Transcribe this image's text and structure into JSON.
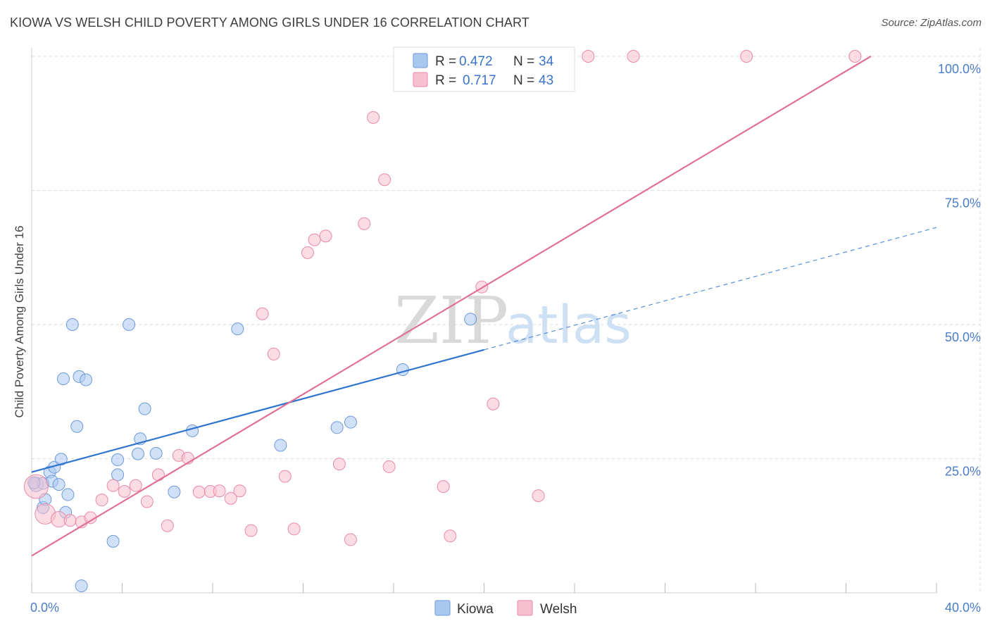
{
  "title": "KIOWA VS WELSH CHILD POVERTY AMONG GIRLS UNDER 16 CORRELATION CHART",
  "source": "Source: ZipAtlas.com",
  "watermark": {
    "zip": "ZIP",
    "atlas": "atlas"
  },
  "colors": {
    "kiowa_fill": "#a9c8f0",
    "kiowa_stroke": "#6e9ad8",
    "kiowa_line": "#2f74cf",
    "welsh_fill": "#f7bfd0",
    "welsh_stroke": "#e98aa8",
    "welsh_line": "#e07098",
    "grid": "#dcdcdc",
    "tick_label": "#4a7cc7"
  },
  "legend": {
    "rows": [
      {
        "r_label": "R =",
        "r_value": "0.472",
        "n_label": "N =",
        "n_value": "34"
      },
      {
        "r_label": "R =",
        "r_value": "0.717",
        "n_label": "N =",
        "n_value": "43"
      }
    ]
  },
  "chart_data": {
    "type": "scatter",
    "title": "KIOWA VS WELSH CHILD POVERTY AMONG GIRLS UNDER 16 CORRELATION CHART",
    "xlabel": "",
    "ylabel": "Child Poverty Among Girls Under 16",
    "xlim": [
      0,
      40
    ],
    "ylim": [
      0,
      102
    ],
    "x_tick_labels": [
      "0.0%",
      "40.0%"
    ],
    "y_ticks": [
      25,
      50,
      75,
      100
    ],
    "y_tick_labels": [
      "25.0%",
      "50.0%",
      "75.0%",
      "100.0%"
    ],
    "grid": true,
    "legend_position": "top-center",
    "series": [
      {
        "name": "Kiowa",
        "r": 0.472,
        "n": 34,
        "trend": {
          "x0": 0,
          "y0": 22.5,
          "x1": 20,
          "y1": 45.3,
          "dash_x1": 40,
          "dash_y1": 68.1
        },
        "points": [
          {
            "x": 0.2,
            "y": 20.2,
            "s": 1.2
          },
          {
            "x": 0.5,
            "y": 20.4,
            "s": 1
          },
          {
            "x": 0.5,
            "y": 15.9,
            "s": 1
          },
          {
            "x": 0.6,
            "y": 17.4,
            "s": 1
          },
          {
            "x": 0.8,
            "y": 22.5,
            "s": 1
          },
          {
            "x": 0.9,
            "y": 20.8,
            "s": 1
          },
          {
            "x": 1.0,
            "y": 23.4,
            "s": 1
          },
          {
            "x": 1.2,
            "y": 20.2,
            "s": 1
          },
          {
            "x": 1.3,
            "y": 24.9,
            "s": 1
          },
          {
            "x": 1.4,
            "y": 39.9,
            "s": 1
          },
          {
            "x": 1.5,
            "y": 15.0,
            "s": 1
          },
          {
            "x": 1.6,
            "y": 18.3,
            "s": 1
          },
          {
            "x": 1.8,
            "y": 50.0,
            "s": 1
          },
          {
            "x": 2.0,
            "y": 31.0,
            "s": 1
          },
          {
            "x": 2.1,
            "y": 40.3,
            "s": 1
          },
          {
            "x": 2.2,
            "y": 1.3,
            "s": 1
          },
          {
            "x": 2.4,
            "y": 39.7,
            "s": 1
          },
          {
            "x": 3.6,
            "y": 9.6,
            "s": 1
          },
          {
            "x": 3.8,
            "y": 22.0,
            "s": 1
          },
          {
            "x": 3.8,
            "y": 24.8,
            "s": 1
          },
          {
            "x": 4.3,
            "y": 50.0,
            "s": 1
          },
          {
            "x": 4.7,
            "y": 25.9,
            "s": 1
          },
          {
            "x": 4.8,
            "y": 28.7,
            "s": 1
          },
          {
            "x": 5.0,
            "y": 34.3,
            "s": 1
          },
          {
            "x": 5.5,
            "y": 26.0,
            "s": 1
          },
          {
            "x": 6.3,
            "y": 18.8,
            "s": 1
          },
          {
            "x": 7.1,
            "y": 30.2,
            "s": 1
          },
          {
            "x": 9.1,
            "y": 49.2,
            "s": 1
          },
          {
            "x": 11.0,
            "y": 27.5,
            "s": 1
          },
          {
            "x": 13.5,
            "y": 30.8,
            "s": 1
          },
          {
            "x": 14.1,
            "y": 31.8,
            "s": 1
          },
          {
            "x": 16.4,
            "y": 41.6,
            "s": 1
          },
          {
            "x": 19.4,
            "y": 51.0,
            "s": 1
          },
          {
            "x": 0.1,
            "y": 20.5,
            "s": 1
          }
        ]
      },
      {
        "name": "Welsh",
        "r": 0.717,
        "n": 43,
        "trend": {
          "x0": 0,
          "y0": 6.9,
          "x1": 37.1,
          "y1": 100
        },
        "points": [
          {
            "x": 0.2,
            "y": 19.8,
            "s": 2.0
          },
          {
            "x": 0.6,
            "y": 14.7,
            "s": 1.7
          },
          {
            "x": 1.2,
            "y": 13.7,
            "s": 1.3
          },
          {
            "x": 1.7,
            "y": 13.5,
            "s": 1
          },
          {
            "x": 2.2,
            "y": 13.2,
            "s": 1
          },
          {
            "x": 2.6,
            "y": 14.0,
            "s": 1
          },
          {
            "x": 3.1,
            "y": 17.3,
            "s": 1
          },
          {
            "x": 3.6,
            "y": 20.0,
            "s": 1
          },
          {
            "x": 4.1,
            "y": 18.9,
            "s": 1
          },
          {
            "x": 4.6,
            "y": 20.0,
            "s": 1
          },
          {
            "x": 5.1,
            "y": 17.0,
            "s": 1
          },
          {
            "x": 5.6,
            "y": 22.0,
            "s": 1
          },
          {
            "x": 6.0,
            "y": 12.5,
            "s": 1
          },
          {
            "x": 6.5,
            "y": 25.6,
            "s": 1
          },
          {
            "x": 6.9,
            "y": 25.1,
            "s": 1
          },
          {
            "x": 7.4,
            "y": 18.8,
            "s": 1
          },
          {
            "x": 7.9,
            "y": 18.9,
            "s": 1
          },
          {
            "x": 8.3,
            "y": 19.0,
            "s": 1
          },
          {
            "x": 8.8,
            "y": 17.6,
            "s": 1
          },
          {
            "x": 9.2,
            "y": 19.0,
            "s": 1
          },
          {
            "x": 9.7,
            "y": 11.6,
            "s": 1
          },
          {
            "x": 10.2,
            "y": 52.0,
            "s": 1
          },
          {
            "x": 10.7,
            "y": 44.5,
            "s": 1
          },
          {
            "x": 11.2,
            "y": 21.7,
            "s": 1
          },
          {
            "x": 11.6,
            "y": 11.9,
            "s": 1
          },
          {
            "x": 12.2,
            "y": 63.4,
            "s": 1
          },
          {
            "x": 12.5,
            "y": 65.8,
            "s": 1
          },
          {
            "x": 13.0,
            "y": 66.5,
            "s": 1
          },
          {
            "x": 13.6,
            "y": 24.0,
            "s": 1
          },
          {
            "x": 14.1,
            "y": 9.9,
            "s": 1
          },
          {
            "x": 14.7,
            "y": 68.8,
            "s": 1
          },
          {
            "x": 15.1,
            "y": 88.6,
            "s": 1
          },
          {
            "x": 15.6,
            "y": 77.0,
            "s": 1
          },
          {
            "x": 15.8,
            "y": 23.5,
            "s": 1
          },
          {
            "x": 18.2,
            "y": 19.8,
            "s": 1
          },
          {
            "x": 18.5,
            "y": 10.6,
            "s": 1
          },
          {
            "x": 19.9,
            "y": 57.0,
            "s": 1
          },
          {
            "x": 20.4,
            "y": 35.2,
            "s": 1
          },
          {
            "x": 22.4,
            "y": 18.1,
            "s": 1
          },
          {
            "x": 24.6,
            "y": 100.0,
            "s": 1
          },
          {
            "x": 26.6,
            "y": 100.0,
            "s": 1
          },
          {
            "x": 31.6,
            "y": 100.0,
            "s": 1
          },
          {
            "x": 36.4,
            "y": 100.0,
            "s": 1
          }
        ]
      }
    ]
  }
}
